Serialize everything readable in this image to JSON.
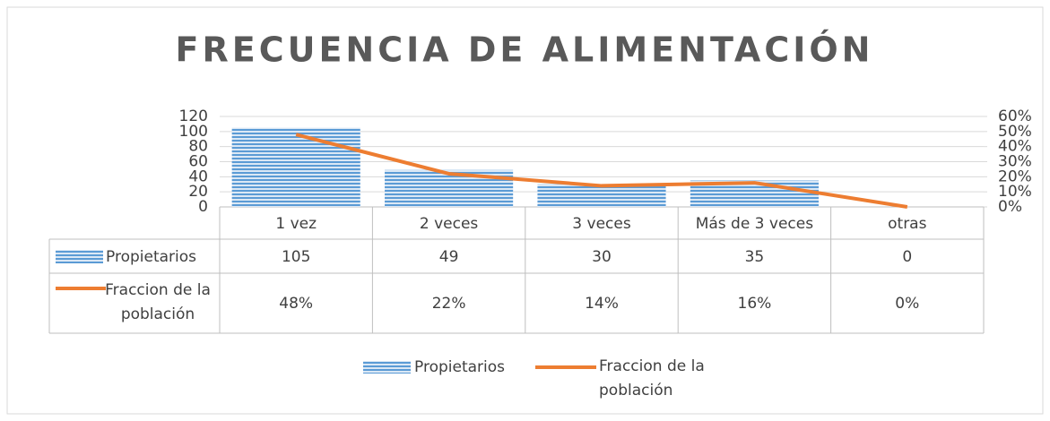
{
  "chart_data": {
    "type": "bar",
    "title": "FRECUENCIA DE ALIMENTACIÓN",
    "categories": [
      "1 vez",
      "2 veces",
      "3 veces",
      "Más de 3 veces",
      "otras"
    ],
    "series": [
      {
        "name": "Propietarios",
        "color": "#5b9bd5",
        "type": "bar",
        "values": [
          105,
          49,
          30,
          35,
          0
        ]
      },
      {
        "name": "Fraccion de la población",
        "color": "#ed7d31",
        "type": "line",
        "axis": "y2",
        "values": [
          48,
          22,
          14,
          16,
          0
        ],
        "value_labels": [
          "48%",
          "22%",
          "14%",
          "16%",
          "0%"
        ]
      }
    ],
    "ylim": [
      0,
      120
    ],
    "yticks": [
      0,
      20,
      40,
      60,
      80,
      100,
      120
    ],
    "y2lim": [
      0,
      60
    ],
    "y2ticks": [
      {
        "value": 0,
        "label": "0%"
      },
      {
        "value": 10,
        "label": "10%"
      },
      {
        "value": 20,
        "label": "20%"
      },
      {
        "value": 30,
        "label": "30%"
      },
      {
        "value": 40,
        "label": "40%"
      },
      {
        "value": 50,
        "label": "50%"
      },
      {
        "value": 60,
        "label": "60%"
      }
    ],
    "grid": true,
    "legend": "bottom"
  }
}
